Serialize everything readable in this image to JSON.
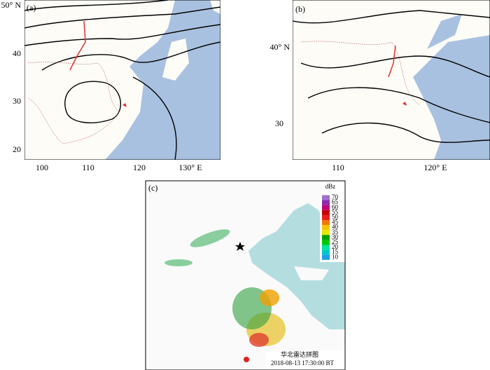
{
  "panels": [
    {
      "label": "(a)",
      "lat_labels": [
        "50° N",
        "40",
        "30",
        "20"
      ],
      "lon_labels": [
        "100",
        "110",
        "120",
        "130° E"
      ]
    },
    {
      "label": "(b)",
      "lat_labels": [
        "40° N",
        "30"
      ],
      "lon_labels": [
        "110",
        "120° E"
      ]
    },
    {
      "label": "(c)",
      "colorbar": {
        "unit": "dBz",
        "levels": [
          "70",
          "65",
          "60",
          "55",
          "50",
          "45",
          "40",
          "35",
          "30",
          "25",
          "20",
          "15",
          "10"
        ],
        "colors": [
          "#a070c8",
          "#8c2ab0",
          "#c00078",
          "#c80000",
          "#e81e1e",
          "#f07800",
          "#f0c800",
          "#e6e600",
          "#00a000",
          "#00c800",
          "#00e6a0",
          "#00c8c8",
          "#1e9ee6"
        ]
      },
      "title": "华北雷达拼图",
      "timestamp": "2018-08-13 17:30:00 BT"
    }
  ]
}
